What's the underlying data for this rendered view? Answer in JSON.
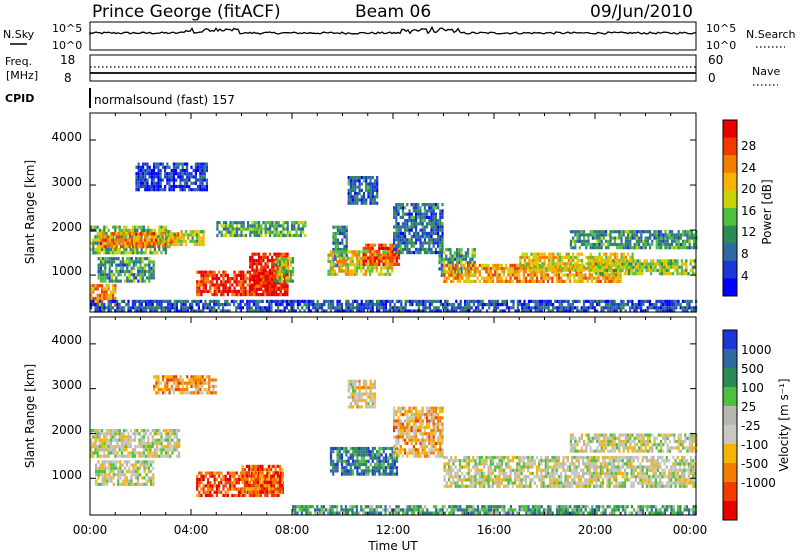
{
  "header": {
    "station": "Prince George (fitACF)",
    "beam": "Beam 06",
    "date": "09/Jun/2010"
  },
  "panels": {
    "nsky_label": "N.Sky",
    "nsky_ticks": [
      "10^5",
      "10^0"
    ],
    "nsearch_label": "N.Search",
    "nsearch_ticks": [
      "10^5",
      "10^0"
    ],
    "freq_label": "Freq.",
    "freq_unit": "[MHz]",
    "freq_ticks": [
      "18",
      "8"
    ],
    "nave_label": "Nave",
    "nave_ticks": [
      "60",
      "0"
    ],
    "cpid_label": "CPID",
    "cpid_text": "normalsound (fast) 157"
  },
  "chart_data": [
    {
      "type": "heatmap",
      "name": "power",
      "ylabel": "Slant Range [km]",
      "y_ticks": [
        "4000",
        "3000",
        "2000",
        "1000"
      ],
      "ylim": [
        180,
        4600
      ],
      "xlim": [
        0,
        24
      ],
      "colorbar_label": "Power [dB]",
      "colorbar_ticks": [
        "28",
        "24",
        "20",
        "16",
        "12",
        "8",
        "4"
      ],
      "colorbar_colors": [
        "#e80000",
        "#f03c00",
        "#f57d00",
        "#f5b400",
        "#c8d400",
        "#4fbf3f",
        "#2e8a55",
        "#2e6aa0",
        "#1c36d8",
        "#0000ff"
      ],
      "bands": [
        {
          "t0": 0.0,
          "t1": 3.0,
          "r0": 1500,
          "r1": 2100,
          "level": 0.45
        },
        {
          "t0": 0.4,
          "t1": 3.5,
          "r0": 1650,
          "r1": 1950,
          "level": 0.75
        },
        {
          "t0": 2.8,
          "t1": 4.5,
          "r0": 1700,
          "r1": 2000,
          "level": 0.55
        },
        {
          "t0": 0.3,
          "t1": 2.5,
          "r0": 850,
          "r1": 1400,
          "level": 0.35
        },
        {
          "t0": 0.0,
          "t1": 1.0,
          "r0": 350,
          "r1": 800,
          "level": 0.7
        },
        {
          "t0": 4.2,
          "t1": 7.8,
          "r0": 600,
          "r1": 1100,
          "level": 0.9
        },
        {
          "t0": 6.3,
          "t1": 7.8,
          "r0": 700,
          "r1": 1500,
          "level": 0.95
        },
        {
          "t0": 7.3,
          "t1": 8.0,
          "r0": 900,
          "r1": 1400,
          "level": 0.5
        },
        {
          "t0": 5.0,
          "t1": 8.5,
          "r0": 1900,
          "r1": 2200,
          "level": 0.4
        },
        {
          "t0": 9.6,
          "t1": 10.2,
          "r0": 1200,
          "r1": 2100,
          "level": 0.3
        },
        {
          "t0": 10.2,
          "t1": 11.4,
          "r0": 2600,
          "r1": 3200,
          "level": 0.25
        },
        {
          "t0": 9.4,
          "t1": 12.0,
          "r0": 1000,
          "r1": 1550,
          "level": 0.6
        },
        {
          "t0": 10.8,
          "t1": 12.2,
          "r0": 1250,
          "r1": 1700,
          "level": 0.85
        },
        {
          "t0": 12.0,
          "t1": 14.0,
          "r0": 1500,
          "r1": 2600,
          "level": 0.25
        },
        {
          "t0": 13.8,
          "t1": 15.2,
          "r0": 1000,
          "r1": 1600,
          "level": 0.35
        },
        {
          "t0": 14.0,
          "t1": 21.0,
          "r0": 850,
          "r1": 1250,
          "level": 0.7
        },
        {
          "t0": 17.0,
          "t1": 21.5,
          "r0": 1100,
          "r1": 1500,
          "level": 0.6
        },
        {
          "t0": 19.0,
          "t1": 24.0,
          "r0": 1600,
          "r1": 2000,
          "level": 0.35
        },
        {
          "t0": 20.0,
          "t1": 24.0,
          "r0": 1050,
          "r1": 1350,
          "level": 0.5
        },
        {
          "t0": 0.0,
          "t1": 24.0,
          "r0": 200,
          "r1": 450,
          "level": 0.2
        },
        {
          "t0": 1.8,
          "t1": 4.6,
          "r0": 2900,
          "r1": 3500,
          "level": 0.15
        }
      ]
    },
    {
      "type": "heatmap",
      "name": "velocity",
      "ylabel": "Slant Range [km]",
      "xlabel": "Time UT",
      "x_ticks": [
        "00:00",
        "04:00",
        "08:00",
        "12:00",
        "16:00",
        "20:00",
        "00:00"
      ],
      "y_ticks": [
        "4000",
        "3000",
        "2000",
        "1000"
      ],
      "ylim": [
        180,
        4600
      ],
      "xlim": [
        0,
        24
      ],
      "colorbar_label": "Velocity [m s⁻¹]",
      "colorbar_ticks": [
        "1000",
        "500",
        "100",
        "25",
        "-25",
        "-100",
        "-500",
        "-1000"
      ],
      "colorbar_colors": [
        "#1c36d8",
        "#2e6aa0",
        "#2e8a55",
        "#4fbf3f",
        "#b8b8b0",
        "#c8c8c0",
        "#f5b400",
        "#f57d00",
        "#f03c00",
        "#e80000"
      ],
      "bands": [
        {
          "t0": 0.0,
          "t1": 3.5,
          "r0": 1500,
          "r1": 2100,
          "level": 0.5
        },
        {
          "t0": 0.2,
          "t1": 2.5,
          "r0": 850,
          "r1": 1400,
          "level": 0.5
        },
        {
          "t0": 4.2,
          "t1": 7.6,
          "r0": 600,
          "r1": 1150,
          "level": 0.15
        },
        {
          "t0": 6.0,
          "t1": 7.6,
          "r0": 700,
          "r1": 1300,
          "level": 0.2
        },
        {
          "t0": 9.5,
          "t1": 12.2,
          "r0": 1100,
          "r1": 1700,
          "level": 0.8
        },
        {
          "t0": 10.2,
          "t1": 11.3,
          "r0": 2600,
          "r1": 3200,
          "level": 0.45
        },
        {
          "t0": 12.0,
          "t1": 14.0,
          "r0": 1500,
          "r1": 2600,
          "level": 0.35
        },
        {
          "t0": 14.0,
          "t1": 24.0,
          "r0": 850,
          "r1": 1500,
          "level": 0.5
        },
        {
          "t0": 19.0,
          "t1": 24.0,
          "r0": 1600,
          "r1": 2000,
          "level": 0.5
        },
        {
          "t0": 8.0,
          "t1": 24.0,
          "r0": 200,
          "r1": 400,
          "level": 0.72
        },
        {
          "t0": 2.5,
          "t1": 5.0,
          "r0": 2900,
          "r1": 3300,
          "level": 0.3
        }
      ]
    }
  ]
}
